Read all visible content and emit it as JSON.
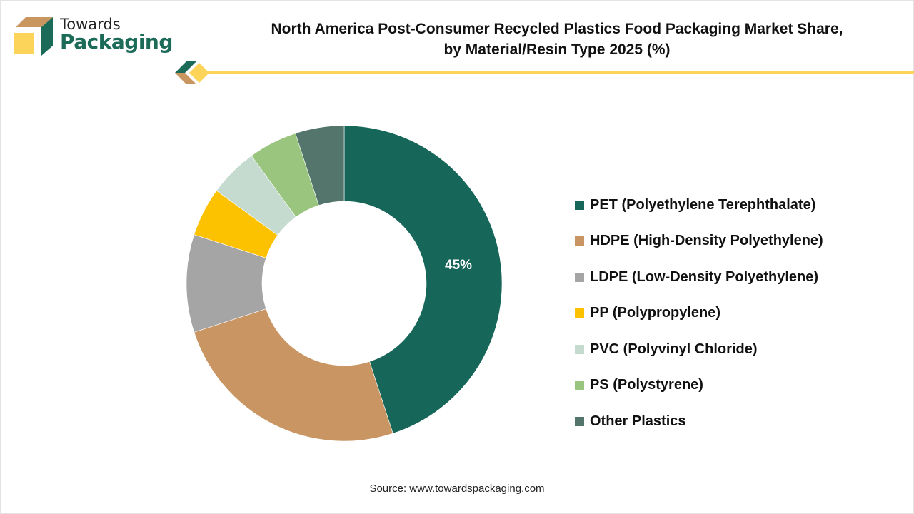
{
  "brand": {
    "line1": "Towards",
    "line2": "Packaging",
    "colors": {
      "green": "#1b6b58",
      "tan": "#c9965f",
      "yellow": "#fcd45a"
    }
  },
  "title": {
    "line1": "North America Post-Consumer Recycled Plastics Food Packaging Market Share,",
    "line2": "by Material/Resin Type 2025 (%)"
  },
  "source": "Source: www.towardspackaging.com",
  "chart_data": {
    "type": "pie",
    "subtype": "donut",
    "title": "North America Post-Consumer Recycled Plastics Food Packaging Market Share, by Material/Resin Type 2025 (%)",
    "categories": [
      "PET (Polyethylene Terephthalate)",
      "HDPE (High-Density Polyethylene)",
      "LDPE (Low-Density Polyethylene)",
      "PP (Polypropylene)",
      "PVC (Polyvinyl Chloride)",
      "PS (Polystyrene)",
      "Other Plastics"
    ],
    "values": [
      45,
      25,
      10,
      5,
      5,
      5,
      5
    ],
    "colors": [
      "#17665a",
      "#c89563",
      "#a5a5a5",
      "#fcc200",
      "#c6dbcf",
      "#9ac57f",
      "#53756c"
    ],
    "data_labels": [
      {
        "category": "PET (Polyethylene Terephthalate)",
        "text": "45%"
      }
    ],
    "legend_position": "right",
    "start_angle": "12 o'clock, clockwise",
    "units": "%"
  },
  "legend": {
    "items": [
      {
        "label": "PET (Polyethylene Terephthalate)",
        "color": "#17665a"
      },
      {
        "label": "HDPE (High-Density Polyethylene)",
        "color": "#c89563"
      },
      {
        "label": "LDPE (Low-Density Polyethylene)",
        "color": "#a5a5a5"
      },
      {
        "label": "PP (Polypropylene)",
        "color": "#fcc200"
      },
      {
        "label": "PVC (Polyvinyl Chloride)",
        "color": "#c6dbcf"
      },
      {
        "label": "PS (Polystyrene)",
        "color": "#9ac57f"
      },
      {
        "label": "Other Plastics",
        "color": "#53756c"
      }
    ]
  },
  "labels": {
    "pet_value": "45%"
  }
}
